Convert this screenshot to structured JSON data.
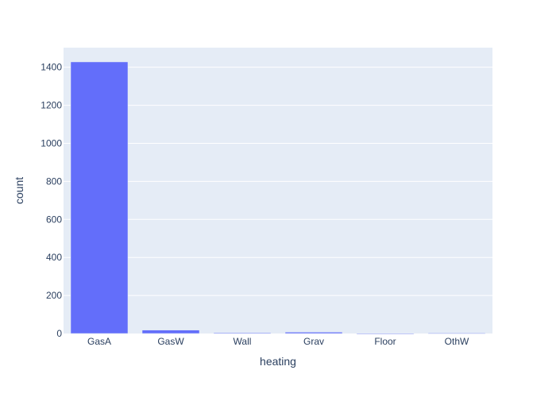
{
  "chart_data": {
    "type": "bar",
    "categories": [
      "GasA",
      "GasW",
      "Wall",
      "Grav",
      "Floor",
      "OthW"
    ],
    "values": [
      1428,
      18,
      4,
      7,
      1,
      2
    ],
    "xlabel": "heating",
    "ylabel": "count",
    "ylim": [
      0,
      1503
    ],
    "yticks": [
      0,
      200,
      400,
      600,
      800,
      1000,
      1200,
      1400
    ],
    "grid": true,
    "bar_color": "#636efa",
    "plot_bg": "#e5ecf6",
    "grid_color": "#ffffff",
    "tick_text_color": "#2a3f5f",
    "label_text_color": "#2a3f5f"
  }
}
